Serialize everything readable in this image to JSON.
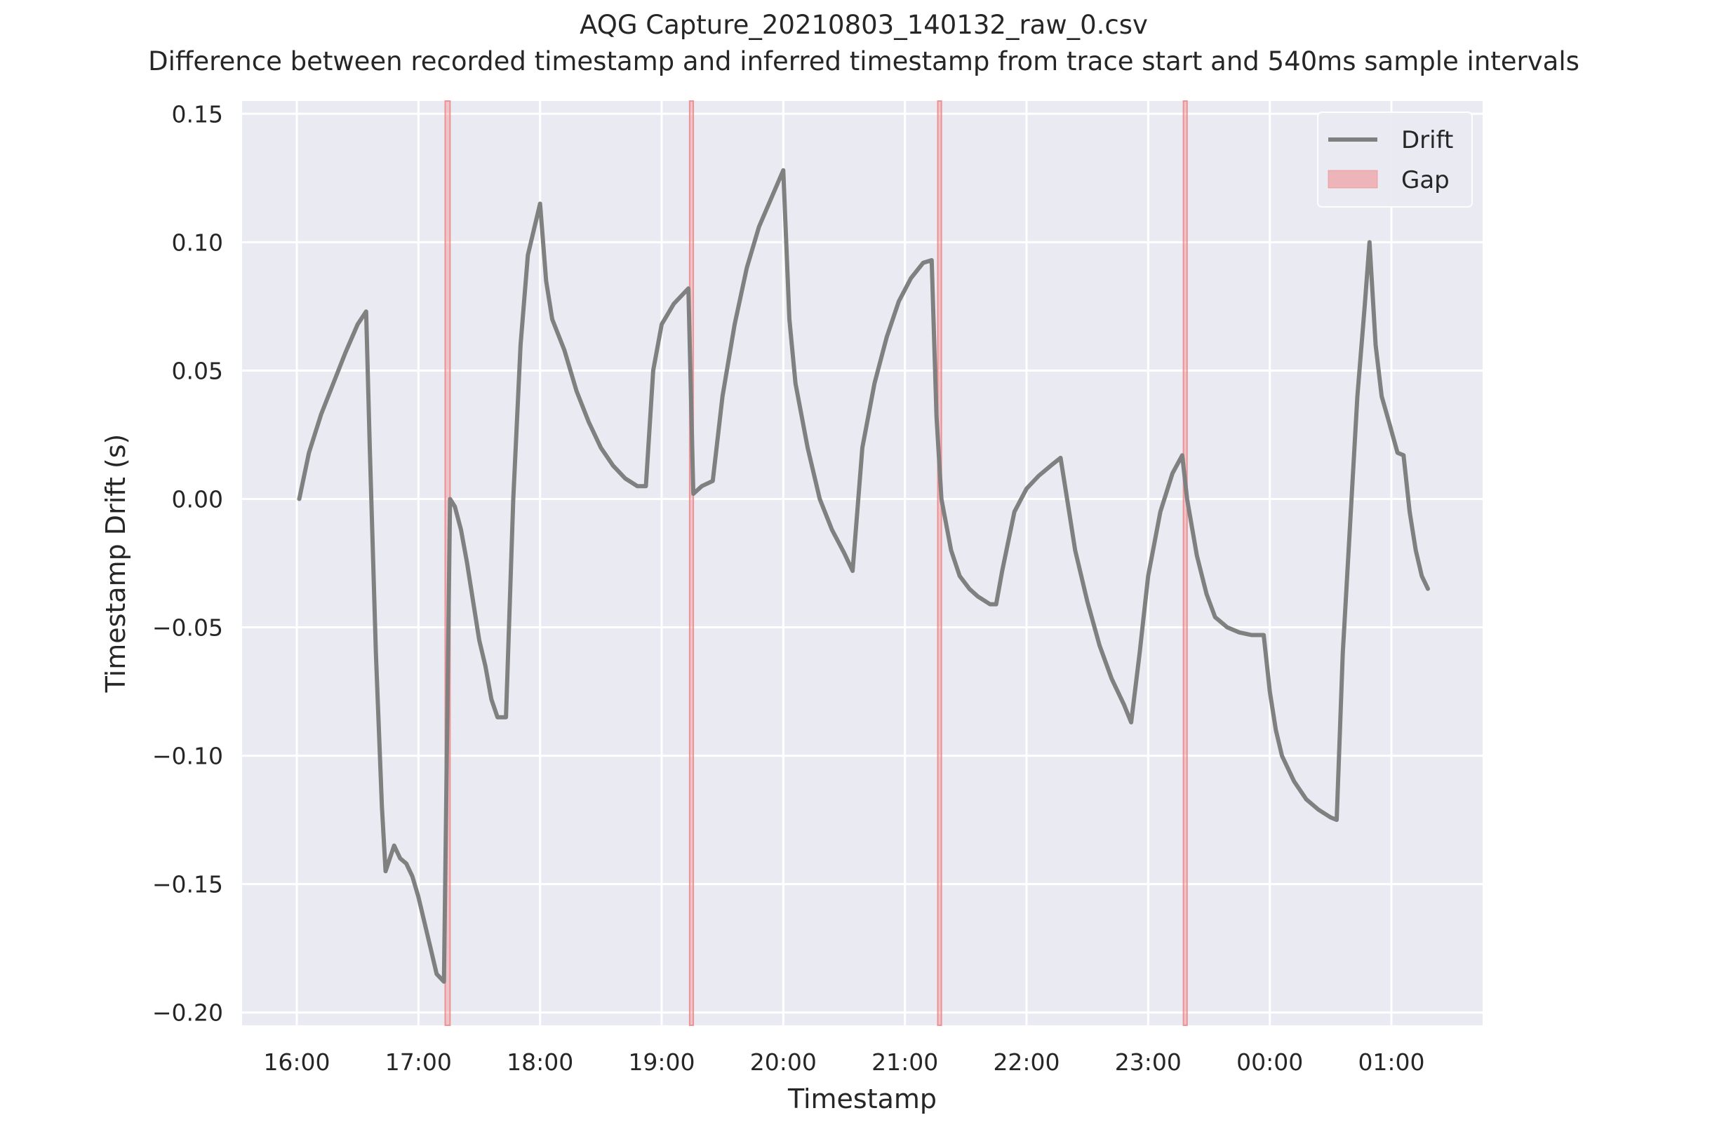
{
  "chart_data": {
    "type": "line",
    "title": "AQG Capture_20210803_140132_raw_0.csv",
    "subtitle": "Difference between recorded timestamp and inferred timestamp from trace start and 540ms sample intervals",
    "xlabel": "Timestamp",
    "ylabel": "Timestamp Drift (s)",
    "x_ticks": [
      "16:00",
      "17:00",
      "18:00",
      "19:00",
      "20:00",
      "21:00",
      "22:00",
      "23:00",
      "00:00",
      "01:00"
    ],
    "y_ticks": [
      "0.15",
      "0.10",
      "0.05",
      "0.00",
      "−0.05",
      "−0.10",
      "−0.15",
      "−0.20"
    ],
    "x_tick_values_hours": [
      16,
      17,
      18,
      19,
      20,
      21,
      22,
      23,
      24,
      25
    ],
    "y_tick_values": [
      0.15,
      0.1,
      0.05,
      0.0,
      -0.05,
      -0.1,
      -0.15,
      -0.2
    ],
    "xlim_hours": [
      15.55,
      25.75
    ],
    "ylim": [
      -0.205,
      0.155
    ],
    "grid": true,
    "legend": {
      "placement": "top-right",
      "entries": [
        "Drift",
        "Gap"
      ]
    },
    "colors": {
      "drift": "#808080",
      "gap": "#f08080",
      "background": "#eaeaf2",
      "grid": "#ffffff"
    },
    "gaps_hours": [
      [
        17.22,
        17.26
      ],
      [
        19.23,
        19.26
      ],
      [
        21.27,
        21.3
      ],
      [
        23.29,
        23.32
      ]
    ],
    "series": [
      {
        "name": "Drift",
        "x_hours": [
          16.02,
          16.1,
          16.2,
          16.3,
          16.4,
          16.5,
          16.57,
          16.6,
          16.65,
          16.7,
          16.73,
          16.8,
          16.85,
          16.9,
          16.95,
          17.0,
          17.05,
          17.1,
          17.15,
          17.21,
          17.26,
          17.3,
          17.35,
          17.4,
          17.45,
          17.5,
          17.55,
          17.6,
          17.65,
          17.72,
          17.78,
          17.84,
          17.9,
          17.95,
          18.0,
          18.05,
          18.1,
          18.2,
          18.3,
          18.4,
          18.5,
          18.6,
          18.7,
          18.8,
          18.87,
          18.93,
          19.0,
          19.1,
          19.22,
          19.26,
          19.33,
          19.42,
          19.5,
          19.6,
          19.7,
          19.8,
          19.9,
          20.0,
          20.05,
          20.1,
          20.2,
          20.3,
          20.4,
          20.5,
          20.57,
          20.65,
          20.75,
          20.85,
          20.95,
          21.05,
          21.15,
          21.22,
          21.26,
          21.3,
          21.38,
          21.45,
          21.53,
          21.6,
          21.7,
          21.75,
          21.8,
          21.9,
          22.0,
          22.1,
          22.2,
          22.28,
          22.35,
          22.4,
          22.5,
          22.6,
          22.7,
          22.8,
          22.86,
          22.93,
          23.0,
          23.1,
          23.2,
          23.28,
          23.32,
          23.4,
          23.48,
          23.55,
          23.65,
          23.75,
          23.85,
          23.95,
          24.0,
          24.05,
          24.1,
          24.2,
          24.3,
          24.4,
          24.5,
          24.55,
          24.6,
          24.66,
          24.72,
          24.78,
          24.82,
          24.87,
          24.92,
          24.98,
          25.05,
          25.1,
          25.15,
          25.2,
          25.25,
          25.3
        ],
        "values": [
          0.0,
          0.018,
          0.033,
          0.045,
          0.057,
          0.068,
          0.073,
          0.02,
          -0.06,
          -0.12,
          -0.145,
          -0.135,
          -0.14,
          -0.142,
          -0.147,
          -0.155,
          -0.165,
          -0.175,
          -0.185,
          -0.188,
          0.0,
          -0.003,
          -0.012,
          -0.025,
          -0.04,
          -0.055,
          -0.065,
          -0.078,
          -0.085,
          -0.085,
          0.0,
          0.06,
          0.095,
          0.105,
          0.115,
          0.085,
          0.07,
          0.058,
          0.042,
          0.03,
          0.02,
          0.013,
          0.008,
          0.005,
          0.005,
          0.05,
          0.068,
          0.076,
          0.082,
          0.002,
          0.005,
          0.007,
          0.04,
          0.068,
          0.09,
          0.106,
          0.117,
          0.128,
          0.07,
          0.045,
          0.02,
          0.0,
          -0.012,
          -0.021,
          -0.028,
          0.02,
          0.045,
          0.063,
          0.077,
          0.086,
          0.092,
          0.093,
          0.032,
          0.0,
          -0.02,
          -0.03,
          -0.035,
          -0.038,
          -0.041,
          -0.041,
          -0.028,
          -0.005,
          0.004,
          0.009,
          0.013,
          0.016,
          -0.005,
          -0.02,
          -0.04,
          -0.057,
          -0.07,
          -0.08,
          -0.087,
          -0.06,
          -0.03,
          -0.005,
          0.01,
          0.017,
          0.0,
          -0.022,
          -0.037,
          -0.046,
          -0.05,
          -0.052,
          -0.053,
          -0.053,
          -0.075,
          -0.09,
          -0.1,
          -0.11,
          -0.117,
          -0.121,
          -0.124,
          -0.125,
          -0.06,
          -0.01,
          0.04,
          0.075,
          0.1,
          0.06,
          0.04,
          0.03,
          0.018,
          0.017,
          -0.005,
          -0.02,
          -0.03,
          -0.035
        ]
      }
    ]
  }
}
